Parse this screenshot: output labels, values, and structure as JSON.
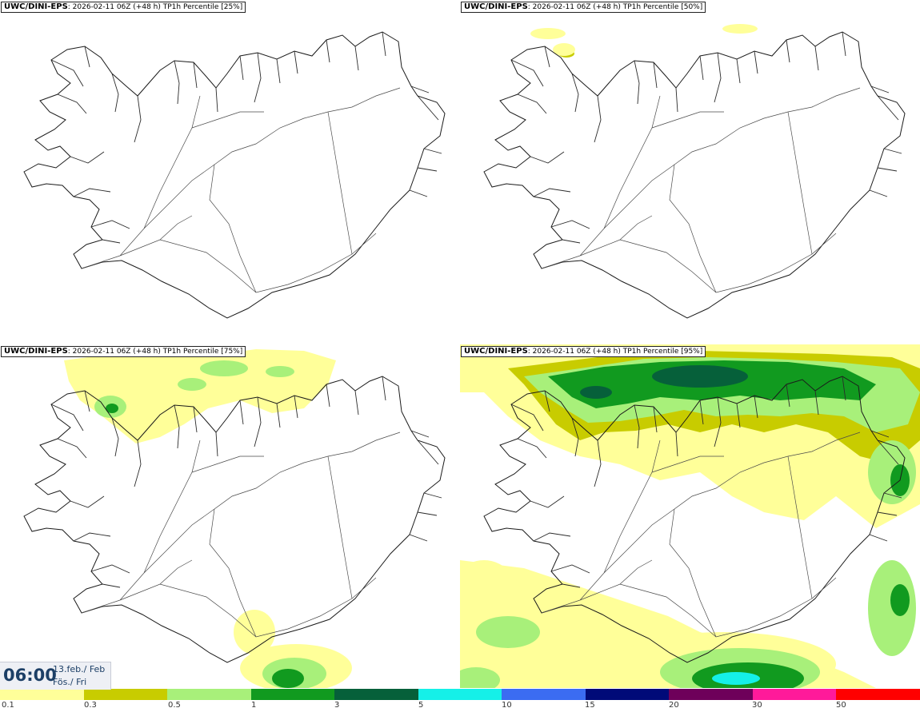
{
  "panels": [
    {
      "model": "UWC/DINI-EPS",
      "info": ": 2026-02-11 06Z (+48 h) TP1h Percentile [25%]"
    },
    {
      "model": "UWC/DINI-EPS",
      "info": ": 2026-02-11 06Z (+48 h) TP1h Percentile [50%]"
    },
    {
      "model": "UWC/DINI-EPS",
      "info": ": 2026-02-11 06Z (+48 h) TP1h Percentile [75%]"
    },
    {
      "model": "UWC/DINI-EPS",
      "info": ": 2026-02-11 06Z (+48 h) TP1h Percentile [95%]"
    }
  ],
  "valid_time": {
    "time": "06:00",
    "date_line1": "13.feb./ Feb",
    "date_line2": "Fös./ Fri"
  },
  "legend": {
    "ticks": [
      "0.1",
      "0.3",
      "0.5",
      "1",
      "3",
      "5",
      "10",
      "15",
      "20",
      "30",
      "50"
    ],
    "colors": [
      "#ffff99",
      "#c8cc00",
      "#a8f07a",
      "#119a1f",
      "#06603a",
      "#15f0e8",
      "#3b6cf2",
      "#000a78",
      "#6e005a",
      "#ff1a9a",
      "#ff0000"
    ]
  }
}
